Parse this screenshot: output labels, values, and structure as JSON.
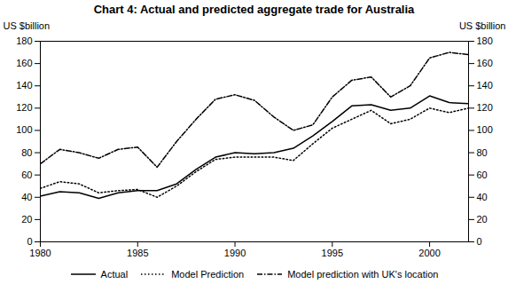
{
  "chart_data": {
    "type": "line",
    "title": "Chart 4: Actual and predicted aggregate trade for Australia",
    "ylabel": "US $billion",
    "y2label": "US $billion",
    "x": [
      1980,
      1981,
      1982,
      1983,
      1984,
      1985,
      1986,
      1987,
      1988,
      1989,
      1990,
      1991,
      1992,
      1993,
      1994,
      1995,
      1996,
      1997,
      1998,
      1999,
      2000,
      2001,
      2002
    ],
    "xlim": [
      1980,
      2002
    ],
    "xticks": [
      1980,
      1985,
      1990,
      1995,
      2000
    ],
    "ylim": [
      0,
      180
    ],
    "yticks": [
      0,
      20,
      40,
      60,
      80,
      100,
      120,
      140,
      160,
      180
    ],
    "y2lim": [
      0,
      180
    ],
    "y2ticks": [
      0,
      20,
      40,
      60,
      80,
      100,
      120,
      140,
      160,
      180
    ],
    "legend": "bottom",
    "series": [
      {
        "name": "Actual",
        "color": "#000000",
        "line_style": "solid",
        "values": [
          41,
          45,
          44,
          39,
          44,
          46,
          46,
          52,
          65,
          76,
          80,
          79,
          80,
          84,
          95,
          108,
          122,
          123,
          118,
          120,
          131,
          125,
          124
        ]
      },
      {
        "name": "Model Prediction",
        "color": "#000000",
        "line_style": "dotted",
        "values": [
          48,
          54,
          52,
          44,
          46,
          47,
          40,
          50,
          63,
          74,
          76,
          76,
          76,
          73,
          88,
          102,
          110,
          118,
          106,
          110,
          120,
          116,
          120
        ]
      },
      {
        "name": "Model prediction with UK's location",
        "color": "#000000",
        "line_style": "dashdot",
        "values": [
          70,
          83,
          80,
          75,
          83,
          85,
          67,
          90,
          110,
          128,
          132,
          127,
          112,
          100,
          105,
          130,
          145,
          148,
          130,
          140,
          165,
          170,
          168
        ]
      }
    ]
  }
}
